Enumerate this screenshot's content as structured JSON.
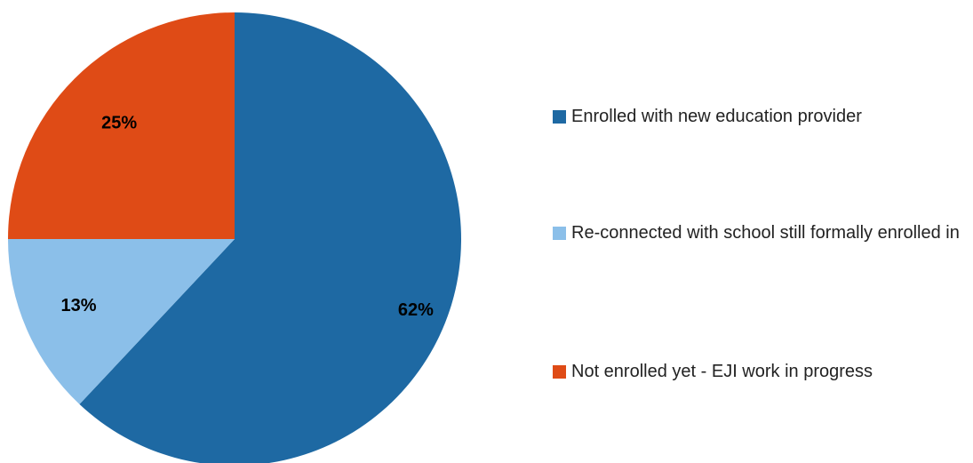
{
  "chart_data": {
    "type": "pie",
    "slices": [
      {
        "label": "Enrolled with new education provider",
        "value": 62,
        "display": "62%",
        "color": "#1e69a3"
      },
      {
        "label": "Re-connected with school still formally enrolled in",
        "value": 13,
        "display": "13%",
        "color": "#8bbfe9"
      },
      {
        "label": "Not enrolled yet - EJI work in progress",
        "value": 25,
        "display": "25%",
        "color": "#df4b16"
      }
    ],
    "start_angle_deg": 0,
    "direction": "clockwise",
    "legend_position": "right"
  }
}
